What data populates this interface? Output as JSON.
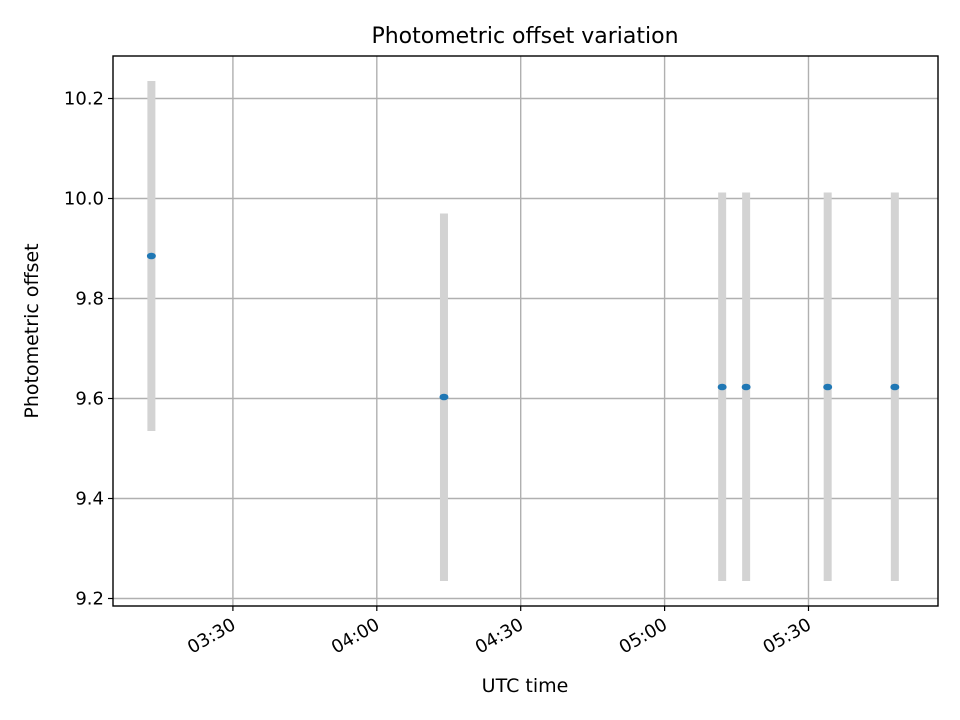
{
  "chart_data": {
    "type": "scatter",
    "title": "Photometric offset variation",
    "xlabel": "UTC time",
    "ylabel": "Photometric offset",
    "x_ticks": [
      "03:30",
      "04:00",
      "04:30",
      "05:00",
      "05:30"
    ],
    "y_ticks": [
      "9.2",
      "9.4",
      "9.6",
      "9.8",
      "10.0",
      "10.2"
    ],
    "xlim": [
      "03:05",
      "05:57"
    ],
    "ylim": [
      9.185,
      10.285
    ],
    "grid": true,
    "marker_color": "#1f77b4",
    "errorbar_color": "#d3d3d3",
    "points": [
      {
        "time": "03:13",
        "value": 9.885,
        "err_low": 9.535,
        "err_high": 10.235
      },
      {
        "time": "04:14",
        "value": 9.603,
        "err_low": 9.235,
        "err_high": 9.97
      },
      {
        "time": "05:12",
        "value": 9.623,
        "err_low": 9.235,
        "err_high": 10.012
      },
      {
        "time": "05:17",
        "value": 9.623,
        "err_low": 9.235,
        "err_high": 10.012
      },
      {
        "time": "05:34",
        "value": 9.623,
        "err_low": 9.235,
        "err_high": 10.012
      },
      {
        "time": "05:48",
        "value": 9.623,
        "err_low": 9.235,
        "err_high": 10.012
      }
    ]
  }
}
